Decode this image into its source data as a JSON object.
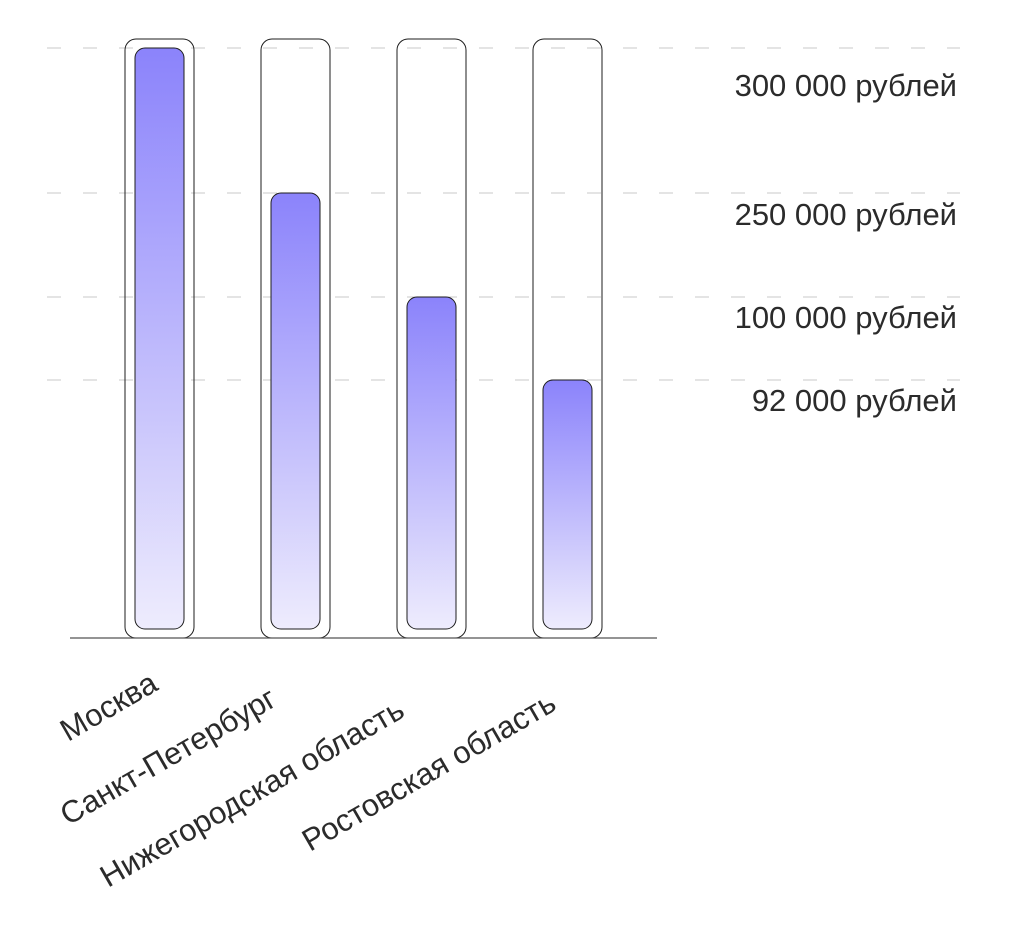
{
  "chart_data": {
    "type": "bar",
    "categories": [
      "Москва",
      "Санкт-Петербург",
      "Нижегородская область",
      "Ростовская область"
    ],
    "values": [
      300000,
      250000,
      100000,
      92000
    ],
    "value_labels": [
      "300 000 рублей",
      "250 000 рублей",
      "100 000 рублей",
      "92 000 рублей"
    ],
    "gridlines": "dashed",
    "colors": {
      "bar_top": "#8b83fb",
      "bar_bottom": "#eeecfd",
      "outline": "#1e1e1e",
      "grid": "#c8c8c8",
      "text": "#2b2b2b"
    }
  }
}
